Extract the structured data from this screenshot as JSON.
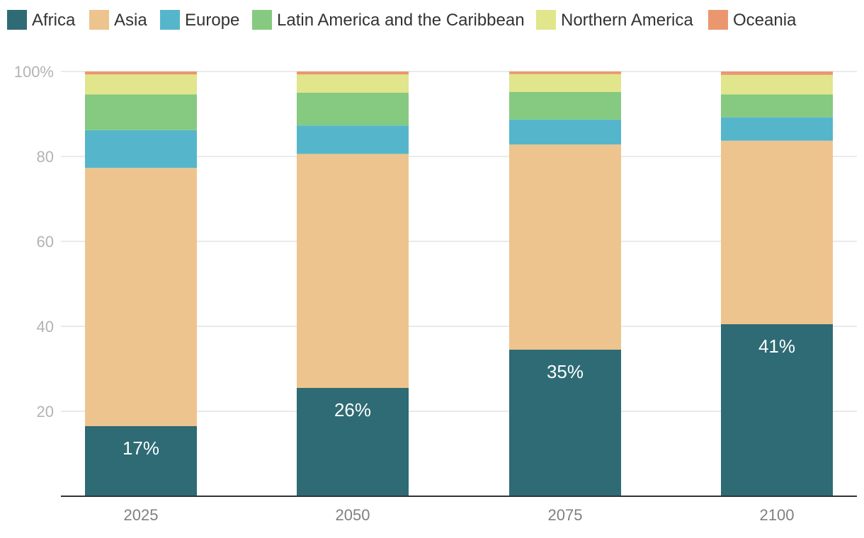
{
  "chart_data": {
    "type": "bar",
    "stacked": true,
    "categories": [
      "2025",
      "2050",
      "2075",
      "2100"
    ],
    "series": [
      {
        "name": "Africa",
        "color": "#2e6b75",
        "values": [
          16.5,
          25.5,
          34.5,
          40.5
        ]
      },
      {
        "name": "Asia",
        "color": "#eec48e",
        "values": [
          60.8,
          55.1,
          48.3,
          43.2
        ]
      },
      {
        "name": "Europe",
        "color": "#55b6cb",
        "values": [
          8.9,
          6.7,
          5.9,
          5.5
        ]
      },
      {
        "name": "Latin America and the Caribbean",
        "color": "#86c980",
        "values": [
          8.4,
          7.7,
          6.5,
          5.4
        ]
      },
      {
        "name": "Northern America",
        "color": "#e1e58c",
        "values": [
          4.7,
          4.3,
          4.2,
          4.6
        ]
      },
      {
        "name": "Oceania",
        "color": "#ea9770",
        "values": [
          0.7,
          0.7,
          0.6,
          0.8
        ]
      }
    ],
    "data_labels": [
      "17%",
      "26%",
      "35%",
      "41%"
    ],
    "y_ticks": [
      "100%",
      "80",
      "60",
      "40",
      "20"
    ],
    "ylim": [
      0,
      100
    ],
    "grid": true,
    "legend_position": "top"
  }
}
